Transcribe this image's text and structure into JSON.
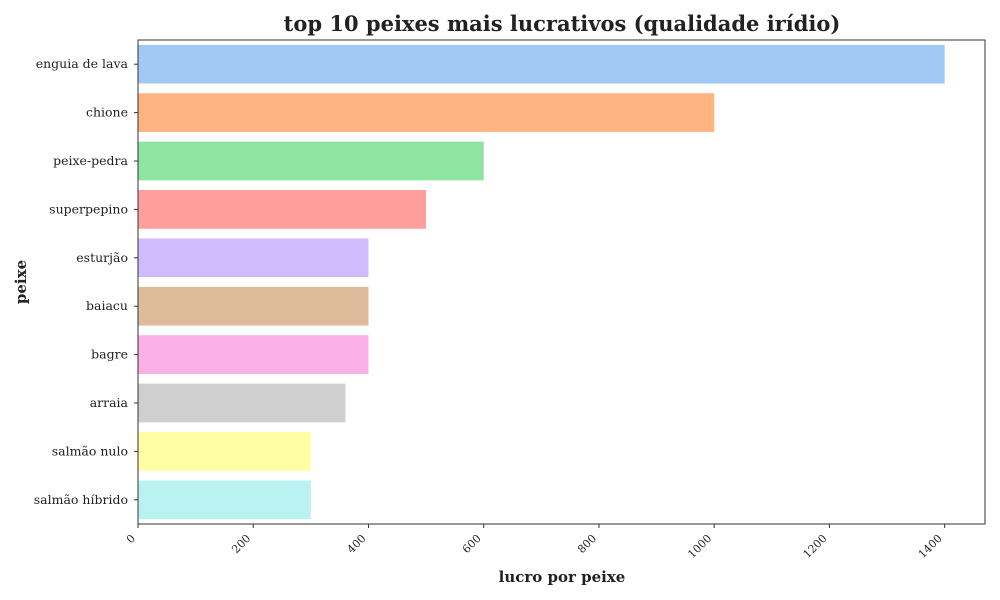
{
  "chart_data": {
    "type": "bar",
    "orientation": "horizontal",
    "title": "top 10 peixes mais lucrativos (qualidade irídio)",
    "xlabel": "lucro por peixe",
    "ylabel": "peixe",
    "xlim": [
      0,
      1470
    ],
    "xticks": [
      0,
      200,
      400,
      600,
      800,
      1000,
      1200,
      1400
    ],
    "xtick_labels": [
      "0",
      "200",
      "400",
      "600",
      "800",
      "1000",
      "1200",
      "1400"
    ],
    "categories": [
      "enguia de lava",
      "chione",
      "peixe-pedra",
      "superpepino",
      "esturjão",
      "baiacu",
      "bagre",
      "arraia",
      "salmão nulo",
      "salmão híbrido"
    ],
    "values": [
      1400,
      1000,
      600,
      500,
      400,
      400,
      400,
      360,
      300,
      300
    ],
    "colors": [
      "#a1c9f4",
      "#ffb482",
      "#8de5a1",
      "#ff9f9b",
      "#d0bbff",
      "#debb9b",
      "#fab0e4",
      "#cfcfcf",
      "#fffea3",
      "#b9f2f0"
    ],
    "grid": false,
    "legend": "none"
  }
}
